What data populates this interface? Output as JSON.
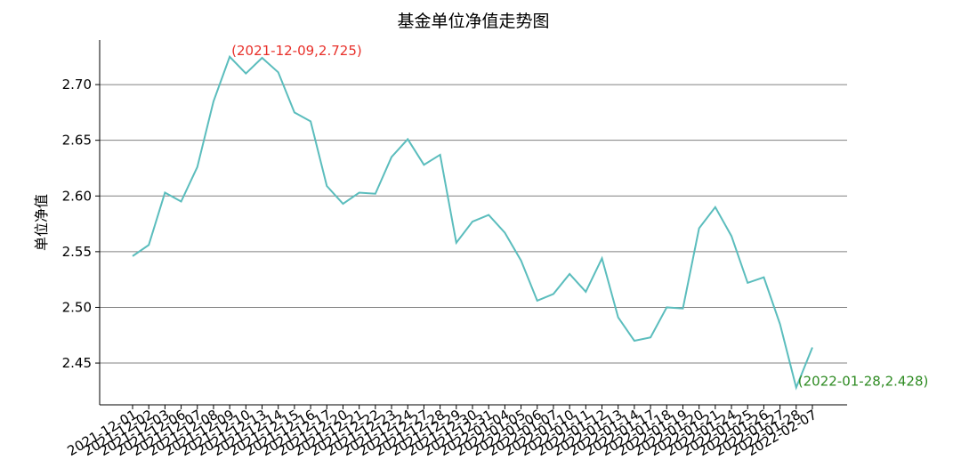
{
  "chart_data": {
    "type": "line",
    "title": "基金单位净值走势图",
    "y_label": "单位净值",
    "categories": [
      "2021-12-01",
      "2021-12-02",
      "2021-12-03",
      "2021-12-06",
      "2021-12-07",
      "2021-12-08",
      "2021-12-09",
      "2021-12-10",
      "2021-12-13",
      "2021-12-14",
      "2021-12-15",
      "2021-12-16",
      "2021-12-17",
      "2021-12-20",
      "2021-12-21",
      "2021-12-22",
      "2021-12-23",
      "2021-12-24",
      "2021-12-27",
      "2021-12-28",
      "2021-12-29",
      "2021-12-30",
      "2021-12-31",
      "2022-01-04",
      "2022-01-05",
      "2022-01-06",
      "2022-01-07",
      "2022-01-10",
      "2022-01-11",
      "2022-01-12",
      "2022-01-13",
      "2022-01-14",
      "2022-01-17",
      "2022-01-18",
      "2022-01-19",
      "2022-01-20",
      "2022-01-21",
      "2022-01-24",
      "2022-01-25",
      "2022-01-26",
      "2022-01-27",
      "2022-01-28",
      "2022-02-07"
    ],
    "series": [
      {
        "name": "单位净值",
        "color": "#5bbdbd",
        "values": [
          2.546,
          2.556,
          2.603,
          2.595,
          2.626,
          2.685,
          2.725,
          2.71,
          2.724,
          2.711,
          2.675,
          2.667,
          2.609,
          2.593,
          2.603,
          2.602,
          2.635,
          2.651,
          2.628,
          2.637,
          2.558,
          2.577,
          2.583,
          2.567,
          2.542,
          2.506,
          2.512,
          2.53,
          2.514,
          2.544,
          2.491,
          2.47,
          2.473,
          2.5,
          2.499,
          2.571,
          2.59,
          2.564,
          2.522,
          2.527,
          2.485,
          2.428,
          2.464
        ]
      }
    ],
    "ylim": [
      2.4125,
      2.74
    ],
    "yticks": [
      {
        "value": 2.45,
        "label": "2.45"
      },
      {
        "value": 2.5,
        "label": "2.50"
      },
      {
        "value": 2.55,
        "label": "2.55"
      },
      {
        "value": 2.6,
        "label": "2.60"
      },
      {
        "value": 2.65,
        "label": "2.65"
      },
      {
        "value": 2.7,
        "label": "2.70"
      }
    ],
    "grid": true,
    "annotations": [
      {
        "text": "(2021-12-09,2.725)",
        "x": "2021-12-09",
        "y": 2.725,
        "color": "#e8302a"
      },
      {
        "text": "(2022-01-28,2.428)",
        "x": "2022-01-28",
        "y": 2.428,
        "color": "#2e8b22"
      }
    ]
  }
}
